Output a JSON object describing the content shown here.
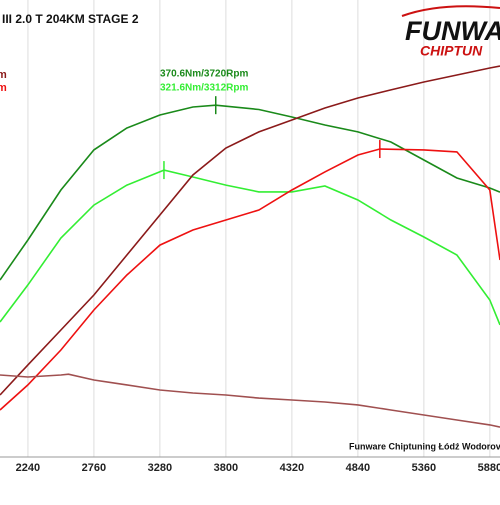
{
  "title": "III 2.0 T 204KM STAGE 2",
  "logo": {
    "top": "FUNWA",
    "bottom": "CHIPTUN"
  },
  "legend_fragments": [
    {
      "text": "m",
      "color": "#8b1a1a"
    },
    {
      "text": "m",
      "color": "#ee1111"
    }
  ],
  "footer": "Funware Chiptuning Łódź Wodorov",
  "chart_data": {
    "type": "line",
    "xlim": [
      2020,
      5960
    ],
    "xticks": [
      2240,
      2760,
      3280,
      3800,
      4320,
      4840,
      5360,
      5880
    ],
    "ylim": [
      105,
      450
    ],
    "grid": true,
    "series": [
      {
        "color": "#1a8a1a",
        "x": [
          2020,
          2240,
          2500,
          2760,
          3020,
          3280,
          3540,
          3720,
          4060,
          4320,
          4580,
          4840,
          5100,
          5360,
          5620,
          5880,
          5960
        ],
        "values": [
          238.6,
          268.8,
          306.6,
          336.8,
          353.4,
          363.2,
          369.2,
          370.6,
          367.3,
          361.7,
          355.6,
          350.4,
          342.8,
          329.2,
          315.6,
          308.1,
          305
        ]
      },
      {
        "color": "#33ee33",
        "x": [
          2020,
          2240,
          2500,
          2760,
          3020,
          3312,
          3540,
          3800,
          4060,
          4320,
          4580,
          4840,
          5100,
          5360,
          5620,
          5880,
          5960
        ],
        "values": [
          206.9,
          234.9,
          270.3,
          295.2,
          310.3,
          321.6,
          316.4,
          310.3,
          305.1,
          305.1,
          309.6,
          299,
          283.9,
          271.1,
          257.5,
          223.5,
          204.7
        ]
      },
      {
        "color": "#8b1a1a",
        "x": [
          2020,
          2240,
          2500,
          2760,
          3020,
          3280,
          3540,
          3800,
          4060,
          4320,
          4580,
          4840,
          5100,
          5360,
          5620,
          5880,
          5960
        ],
        "values": [
          151.8,
          174.5,
          200.9,
          227.3,
          257.5,
          287.7,
          317.9,
          338.3,
          350.4,
          359.4,
          368.5,
          376,
          382.1,
          388.1,
          393.4,
          398.7,
          400.2
        ]
      },
      {
        "color": "#ee1111",
        "x": [
          2020,
          2240,
          2500,
          2760,
          3020,
          3280,
          3540,
          3800,
          4060,
          4320,
          4580,
          4840,
          5013,
          5360,
          5620,
          5880,
          5960
        ],
        "values": [
          140.5,
          159.4,
          185.8,
          216,
          242.4,
          265,
          276.4,
          283.9,
          291.5,
          306.6,
          320.2,
          333,
          337.5,
          336.8,
          335.3,
          306.6,
          253.7
        ]
      },
      {
        "color": "#a05050",
        "x": [
          2020,
          2240,
          2500,
          2560,
          2760,
          3020,
          3280,
          3540,
          3800,
          4060,
          4320,
          4580,
          4840,
          5100,
          5360,
          5620,
          5880,
          5960
        ],
        "values": [
          166.9,
          165.4,
          166.9,
          167.5,
          163.1,
          159.4,
          155.6,
          153.3,
          151.8,
          149.5,
          148,
          146.5,
          144.3,
          140.5,
          136.7,
          132.9,
          129.2,
          127.6
        ]
      }
    ],
    "annotations": [
      {
        "text": "370.6Nm/3720Rpm",
        "series": 0,
        "index": 7
      },
      {
        "text": "321.6Nm/3312Rpm",
        "series": 1,
        "index": 5
      },
      {
        "series": 3,
        "index": 12
      }
    ]
  }
}
